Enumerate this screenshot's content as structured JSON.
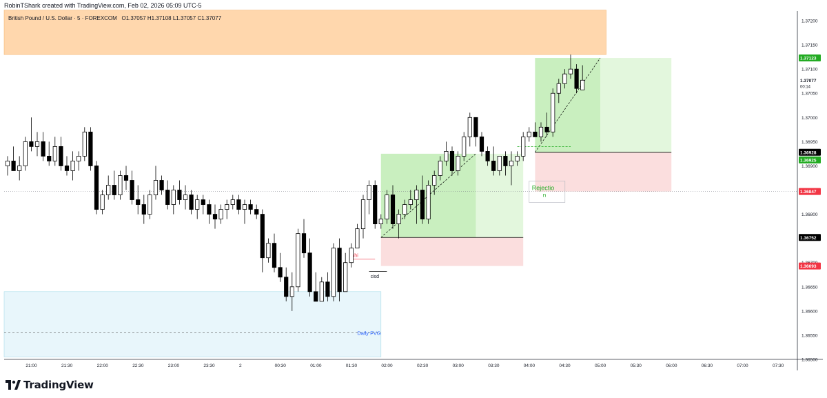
{
  "header": {
    "credit": "RobinTShark created with TradingView.com, Feb 02, 2026 05:09 UTC-5"
  },
  "symbol": {
    "name": "British Pound / U.S. Dollar · 5 · FOREXCOM",
    "o_label": "O",
    "o": "1.37057",
    "h_label": "H",
    "h": "1.37108",
    "l_label": "L",
    "l": "1.37057",
    "c_label": "C",
    "c": "1.37077"
  },
  "brand": {
    "name": "TradingView"
  },
  "colors": {
    "up_candle": "#ffffff",
    "down_candle": "#000000",
    "wick": "#000000",
    "supply_zone": "#ffd7ad",
    "fvg_zone": "#e8f6fb",
    "target_zone": "#c9efbf",
    "target_zone_light": "#e3f7dd",
    "stop_zone": "#fbdede",
    "price_green": "#22ab22",
    "price_red": "#f23645",
    "price_black": "#000000"
  },
  "chart_data": {
    "type": "candlestick",
    "symbol": "British Pound / U.S. Dollar",
    "timeframe": "5",
    "exchange": "FOREXCOM",
    "ylim": [
      1.365,
      1.3722
    ],
    "y_ticks": [
      "1.37200",
      "1.37150",
      "1.37100",
      "1.37050",
      "1.37000",
      "1.36950",
      "1.36900",
      "1.36800",
      "1.36750",
      "1.36700",
      "1.36650",
      "1.36600",
      "1.36550",
      "1.36500"
    ],
    "x_ticks": [
      "21:00",
      "21:30",
      "22:00",
      "22:30",
      "23:00",
      "23:30",
      "2",
      "00:30",
      "01:00",
      "01:30",
      "02:00",
      "02:30",
      "03:00",
      "03:30",
      "04:00",
      "04:30",
      "05:00",
      "05:30",
      "06:00",
      "06:30",
      "07:00",
      "07:30"
    ],
    "x_tick_index": [
      4,
      10,
      16,
      22,
      28,
      34,
      40,
      46,
      52,
      58,
      64,
      70,
      76,
      82,
      88,
      94,
      100,
      106,
      112,
      118,
      124,
      130
    ],
    "candles": [
      [
        1.369,
        1.3692,
        1.3688,
        1.3691
      ],
      [
        1.3691,
        1.3694,
        1.3689,
        1.3689
      ],
      [
        1.3689,
        1.3692,
        1.3687,
        1.369
      ],
      [
        1.369,
        1.3696,
        1.3689,
        1.3695
      ],
      [
        1.3695,
        1.37,
        1.3693,
        1.3694
      ],
      [
        1.3694,
        1.3697,
        1.3692,
        1.3695
      ],
      [
        1.3695,
        1.3697,
        1.3691,
        1.3692
      ],
      [
        1.3692,
        1.3695,
        1.369,
        1.3691
      ],
      [
        1.3691,
        1.3696,
        1.369,
        1.3694
      ],
      [
        1.3694,
        1.3696,
        1.3689,
        1.369
      ],
      [
        1.369,
        1.3692,
        1.3688,
        1.3689
      ],
      [
        1.3689,
        1.3693,
        1.3687,
        1.3691
      ],
      [
        1.3691,
        1.3693,
        1.3689,
        1.3692
      ],
      [
        1.3692,
        1.3698,
        1.3691,
        1.3697
      ],
      [
        1.3697,
        1.3698,
        1.3689,
        1.369
      ],
      [
        1.369,
        1.3691,
        1.368,
        1.3681
      ],
      [
        1.3681,
        1.3685,
        1.368,
        1.3684
      ],
      [
        1.3684,
        1.3688,
        1.3683,
        1.3686
      ],
      [
        1.3686,
        1.3689,
        1.3683,
        1.3684
      ],
      [
        1.3684,
        1.3689,
        1.3683,
        1.3688
      ],
      [
        1.3688,
        1.369,
        1.3685,
        1.3687
      ],
      [
        1.3687,
        1.3689,
        1.3682,
        1.3683
      ],
      [
        1.3683,
        1.3686,
        1.368,
        1.3682
      ],
      [
        1.3682,
        1.3684,
        1.3678,
        1.368
      ],
      [
        1.368,
        1.3685,
        1.3679,
        1.3684
      ],
      [
        1.3684,
        1.369,
        1.3683,
        1.3687
      ],
      [
        1.3687,
        1.3688,
        1.3684,
        1.3685
      ],
      [
        1.3685,
        1.3687,
        1.3681,
        1.3682
      ],
      [
        1.3682,
        1.3686,
        1.368,
        1.3685
      ],
      [
        1.3685,
        1.3687,
        1.3682,
        1.3683
      ],
      [
        1.3683,
        1.3686,
        1.3681,
        1.3684
      ],
      [
        1.3684,
        1.3685,
        1.368,
        1.3681
      ],
      [
        1.3681,
        1.3684,
        1.3679,
        1.3683
      ],
      [
        1.3683,
        1.3684,
        1.368,
        1.3682
      ],
      [
        1.3682,
        1.3683,
        1.3678,
        1.368
      ],
      [
        1.368,
        1.3682,
        1.3677,
        1.3679
      ],
      [
        1.3679,
        1.3682,
        1.3678,
        1.3681
      ],
      [
        1.3681,
        1.3683,
        1.3679,
        1.3682
      ],
      [
        1.3682,
        1.3684,
        1.3681,
        1.3683
      ],
      [
        1.3683,
        1.3684,
        1.368,
        1.3681
      ],
      [
        1.3681,
        1.3683,
        1.3678,
        1.3682
      ],
      [
        1.3682,
        1.3683,
        1.368,
        1.3681
      ],
      [
        1.3681,
        1.3682,
        1.3679,
        1.368
      ],
      [
        1.368,
        1.3681,
        1.3668,
        1.3671
      ],
      [
        1.3671,
        1.3675,
        1.367,
        1.3674
      ],
      [
        1.3674,
        1.3676,
        1.3668,
        1.3669
      ],
      [
        1.3669,
        1.3672,
        1.3666,
        1.3667
      ],
      [
        1.3667,
        1.3669,
        1.3662,
        1.3663
      ],
      [
        1.3663,
        1.3668,
        1.366,
        1.3665
      ],
      [
        1.3665,
        1.3677,
        1.3664,
        1.3676
      ],
      [
        1.3676,
        1.3679,
        1.3671,
        1.3672
      ],
      [
        1.3672,
        1.3675,
        1.3663,
        1.3664
      ],
      [
        1.3664,
        1.3668,
        1.3662,
        1.3662
      ],
      [
        1.3662,
        1.3667,
        1.3662,
        1.3666
      ],
      [
        1.3666,
        1.3668,
        1.3662,
        1.3663
      ],
      [
        1.3663,
        1.3674,
        1.3662,
        1.3673
      ],
      [
        1.3673,
        1.3675,
        1.3662,
        1.3664
      ],
      [
        1.3664,
        1.3672,
        1.3664,
        1.367
      ],
      [
        1.367,
        1.3674,
        1.3669,
        1.3673
      ],
      [
        1.3673,
        1.3678,
        1.3673,
        1.3677
      ],
      [
        1.3677,
        1.3684,
        1.3675,
        1.3683
      ],
      [
        1.3683,
        1.3687,
        1.368,
        1.3686
      ],
      [
        1.3686,
        1.3687,
        1.3677,
        1.3678
      ],
      [
        1.3678,
        1.368,
        1.3677,
        1.3679
      ],
      [
        1.3679,
        1.3685,
        1.3678,
        1.3684
      ],
      [
        1.3684,
        1.3686,
        1.3677,
        1.3678
      ],
      [
        1.3678,
        1.3681,
        1.3675,
        1.368
      ],
      [
        1.368,
        1.3683,
        1.3679,
        1.3682
      ],
      [
        1.3682,
        1.3685,
        1.3681,
        1.3683
      ],
      [
        1.3683,
        1.3686,
        1.3678,
        1.3685
      ],
      [
        1.3685,
        1.3688,
        1.3678,
        1.3679
      ],
      [
        1.3679,
        1.3687,
        1.3678,
        1.3686
      ],
      [
        1.3686,
        1.3689,
        1.3684,
        1.3688
      ],
      [
        1.3688,
        1.3692,
        1.3687,
        1.3691
      ],
      [
        1.3691,
        1.3695,
        1.369,
        1.3693
      ],
      [
        1.3693,
        1.3694,
        1.3688,
        1.3689
      ],
      [
        1.3689,
        1.3693,
        1.3688,
        1.3692
      ],
      [
        1.3692,
        1.3697,
        1.3691,
        1.3696
      ],
      [
        1.3696,
        1.3701,
        1.3694,
        1.37
      ],
      [
        1.37,
        1.37,
        1.3694,
        1.3696
      ],
      [
        1.3696,
        1.3697,
        1.3692,
        1.3693
      ],
      [
        1.3693,
        1.3694,
        1.369,
        1.3691
      ],
      [
        1.3691,
        1.3694,
        1.3688,
        1.3689
      ],
      [
        1.3689,
        1.3692,
        1.3688,
        1.3692
      ],
      [
        1.3692,
        1.3693,
        1.3688,
        1.369
      ],
      [
        1.369,
        1.3693,
        1.3686,
        1.3691
      ],
      [
        1.3691,
        1.3693,
        1.369,
        1.3692
      ],
      [
        1.3692,
        1.3697,
        1.3691,
        1.3696
      ],
      [
        1.3696,
        1.3698,
        1.3695,
        1.3697
      ],
      [
        1.3697,
        1.3699,
        1.3696,
        1.3696
      ],
      [
        1.3696,
        1.3699,
        1.3695,
        1.3698
      ],
      [
        1.3698,
        1.3701,
        1.3696,
        1.3697
      ],
      [
        1.3697,
        1.3706,
        1.3696,
        1.3705
      ],
      [
        1.3705,
        1.3708,
        1.3703,
        1.3707
      ],
      [
        1.3707,
        1.371,
        1.3706,
        1.3709
      ],
      [
        1.3709,
        1.3713,
        1.3708,
        1.371
      ],
      [
        1.371,
        1.3711,
        1.3705,
        1.3706
      ],
      [
        1.37057,
        1.37108,
        1.37057,
        1.37077
      ]
    ],
    "series": [
      {
        "name": "Daily FVG",
        "kind": "zone",
        "y_range": [
          1.36505,
          1.3664
        ]
      },
      {
        "name": "",
        "kind": "supply-zone",
        "y_range": [
          1.3713,
          1.37222
        ]
      }
    ],
    "annotations": {
      "fvg_label": "Daily FVG",
      "cisd_label": "cisd",
      "shift_label": "shi",
      "rejection_label": "Rejectio",
      "rejection_label_2": "n"
    },
    "price_labels": [
      {
        "value": "1.37123",
        "color": "#22ab22"
      },
      {
        "value": "1.37077",
        "sub": "00:14",
        "color": "#ffffff"
      },
      {
        "value": "1.36928",
        "color": "#000000"
      },
      {
        "value": "1.36925",
        "color": "#22ab22"
      },
      {
        "value": "1.36847",
        "color": "#f23645"
      },
      {
        "value": "1.36752",
        "color": "#000000"
      },
      {
        "value": "1.36693",
        "color": "#f23645"
      }
    ],
    "grid": false
  }
}
